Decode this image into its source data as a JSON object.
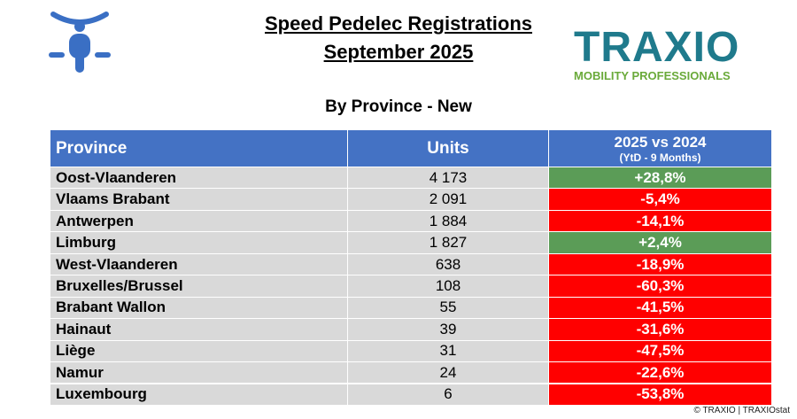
{
  "header": {
    "title": "Speed Pedelec Registrations",
    "date": "September 2025",
    "caption": "By Province - New"
  },
  "logo": {
    "name": "TRAXIO",
    "tagline": "MOBILITY PROFESSIONALS"
  },
  "table": {
    "columns": [
      "Province",
      "Units",
      "2025 vs 2024",
      "(YtD - 9 Months)"
    ],
    "positive_color": "#5b9c57",
    "negative_color": "#ff0000",
    "rows": [
      [
        "Oost-Vlaanderen",
        "4 173",
        "+28,8%"
      ],
      [
        "Vlaams Brabant",
        "2 091",
        "-5,4%"
      ],
      [
        "Antwerpen",
        "1 884",
        "-14,1%"
      ],
      [
        "Limburg",
        "1 827",
        "+2,4%"
      ],
      [
        "West-Vlaanderen",
        "638",
        "-18,9%"
      ],
      [
        "Bruxelles/Brussel",
        "108",
        "-60,3%"
      ],
      [
        "Brabant Wallon",
        "55",
        "-41,5%"
      ],
      [
        "Hainaut",
        "39",
        "-31,6%"
      ],
      [
        "Liège",
        "31",
        "-47,5%"
      ],
      [
        "Namur",
        "24",
        "-22,6%"
      ],
      [
        "Luxembourg",
        "6",
        "-53,8%"
      ]
    ]
  },
  "footer": "© TRAXIO | TRAXIOstat"
}
